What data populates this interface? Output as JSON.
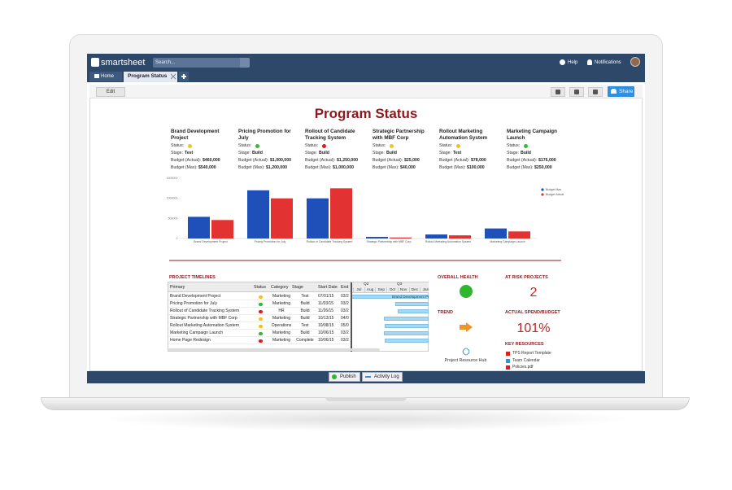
{
  "app": {
    "logo": "smartsheet",
    "search_placeholder": "Search...",
    "help": "Help",
    "notifications": "Notifications"
  },
  "tabs": [
    "Home",
    "Program Status"
  ],
  "toolbar": {
    "edit": "Edit",
    "share": "Share"
  },
  "dashboard": {
    "title": "Program Status",
    "field_labels": {
      "status": "Status:",
      "stage": "Stage:",
      "budget_actual": "Budget (Actual):",
      "budget_max": "Budget (Max):"
    },
    "projects": [
      {
        "name": "Brand Development Project",
        "status_color": "#f2c318",
        "stage": "Test",
        "budget_actual": "$460,000",
        "budget_max": "$540,000"
      },
      {
        "name": "Pricing Promotion for July",
        "status_color": "#3db63d",
        "stage": "Build",
        "budget_actual": "$1,000,000",
        "budget_max": "$1,200,000"
      },
      {
        "name": "Rollout of Candidate Tracking System",
        "status_color": "#d62020",
        "stage": "Build",
        "budget_actual": "$1,250,000",
        "budget_max": "$1,000,000"
      },
      {
        "name": "Strategic Partnership with MBF Corp",
        "status_color": "#f2c318",
        "stage": "Build",
        "budget_actual": "$25,000",
        "budget_max": "$40,000"
      },
      {
        "name": "Rollout Marketing Automation System",
        "status_color": "#f2c318",
        "stage": "Test",
        "budget_actual": "$78,000",
        "budget_max": "$100,000"
      },
      {
        "name": "Marketing Campaign Launch",
        "status_color": "#3db63d",
        "stage": "Build",
        "budget_actual": "$176,000",
        "budget_max": "$250,000"
      }
    ]
  },
  "chart_data": {
    "type": "bar",
    "categories": [
      "Brand Development Project",
      "Pricing Promotion for July",
      "Rollout of Candidate Tracking System",
      "Strategic Partnership with MBF Corp",
      "Rollout Marketing Automation System",
      "Marketing Campaign Launch"
    ],
    "series": [
      {
        "name": "Budget Max",
        "color": "#1f4fb8",
        "values": [
          540000,
          1200000,
          1000000,
          40000,
          100000,
          250000
        ]
      },
      {
        "name": "Budget Actual",
        "color": "#e23232",
        "values": [
          460000,
          1000000,
          1250000,
          25000,
          78000,
          176000
        ]
      }
    ],
    "ylim": [
      0,
      1500000
    ],
    "yticks": [
      0,
      500000,
      1000000,
      1500000
    ],
    "grid": false,
    "legend": "upper right"
  },
  "timelines": {
    "title": "PROJECT TIMELINES",
    "columns": [
      "Primary",
      "Status",
      "Category",
      "Stage",
      "Start Date",
      "End"
    ],
    "rows": [
      {
        "primary": "Brand Development Project",
        "status_color": "#f2c318",
        "category": "Marketing",
        "stage": "Test",
        "start": "07/01/15",
        "end": "03/2"
      },
      {
        "primary": "Pricing Promotion for July",
        "status_color": "#3db63d",
        "category": "Marketing",
        "stage": "Build",
        "start": "11/03/15",
        "end": "03/2"
      },
      {
        "primary": "Rollout of Candidate Tracking System",
        "status_color": "#d62020",
        "category": "HR",
        "stage": "Build",
        "start": "11/26/15",
        "end": "03/2"
      },
      {
        "primary": "Strategic Partnership with MBF Corp",
        "status_color": "#f2c318",
        "category": "Marketing",
        "stage": "Build",
        "start": "10/13/15",
        "end": "04/0"
      },
      {
        "primary": "Rollout Marketing Automation System",
        "status_color": "#f2c318",
        "category": "Operations",
        "stage": "Test",
        "start": "10/08/15",
        "end": "05/0"
      },
      {
        "primary": "Marketing Campaign Launch",
        "status_color": "#3db63d",
        "category": "Marketing",
        "stage": "Build",
        "start": "10/06/15",
        "end": "03/2"
      },
      {
        "primary": "Home Page Redesign",
        "status_color": "#d62020",
        "category": "Marketing",
        "stage": "Complete",
        "start": "10/06/15",
        "end": "03/2"
      }
    ],
    "quarters": [
      "Q2",
      "Q3"
    ],
    "months": [
      "Jul",
      "Aug",
      "Sep",
      "Oct",
      "Nov",
      "Dec",
      "Jan"
    ],
    "bar_label": "Brand Development Pr"
  },
  "widgets": {
    "overall_health": "OVERALL HEALTH",
    "trend": "TREND",
    "resource_hub": "Project Resource Hub",
    "at_risk_title": "AT RISK PROJECTS",
    "at_risk_value": "2",
    "spend_title": "ACTUAL SPEND/BUDGET",
    "spend_value": "101%",
    "key_resources_title": "KEY RESOURCES",
    "key_resources": [
      "TPS Report Template",
      "Team Calendar",
      "Policies.pdf"
    ]
  },
  "footer": {
    "publish": "Publish",
    "activity_log": "Activity Log"
  }
}
